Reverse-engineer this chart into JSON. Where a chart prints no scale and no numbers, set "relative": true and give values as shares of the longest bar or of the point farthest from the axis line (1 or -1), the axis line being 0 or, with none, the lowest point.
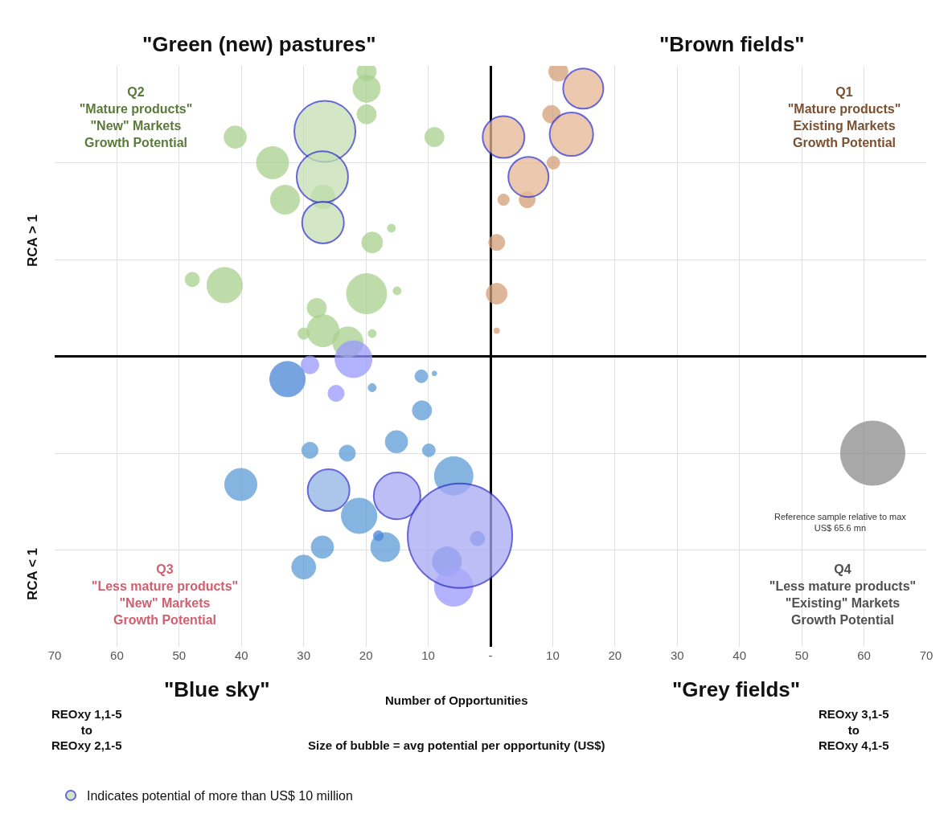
{
  "chart_data": {
    "type": "bubble",
    "relative": true,
    "xlabel": "Number of Opportunities",
    "xlim": [
      -70,
      70
    ],
    "xticks": [
      {
        "value": -70,
        "label": "70"
      },
      {
        "value": -60,
        "label": "60"
      },
      {
        "value": -50,
        "label": "50"
      },
      {
        "value": -40,
        "label": "40"
      },
      {
        "value": -30,
        "label": "30"
      },
      {
        "value": -20,
        "label": "20"
      },
      {
        "value": -10,
        "label": "10"
      },
      {
        "value": 0,
        "label": "-"
      },
      {
        "value": 10,
        "label": "10"
      },
      {
        "value": 20,
        "label": "20"
      },
      {
        "value": 30,
        "label": "30"
      },
      {
        "value": 40,
        "label": "40"
      },
      {
        "value": 50,
        "label": "50"
      },
      {
        "value": 60,
        "label": "60"
      },
      {
        "value": 70,
        "label": "70"
      }
    ],
    "grid": true,
    "legend": "bottom left",
    "series": [
      {
        "color": "#a9d18e",
        "x": [
          -19.9,
          -19.9,
          -19.9,
          -9.0,
          -41.0,
          -35.0,
          -33.0,
          -26.9,
          -19.0,
          -15.9,
          -47.9,
          -42.7,
          -19.9,
          -15.0,
          -27.9,
          -26.9,
          -30.0,
          -22.9,
          -19.0
        ],
        "values": [
          1.0,
          0.94,
          0.85,
          0.77,
          0.77,
          0.68,
          0.55,
          0.56,
          0.4,
          0.45,
          0.27,
          0.25,
          0.22,
          0.23,
          0.17,
          0.09,
          0.08,
          0.05,
          0.08
        ],
        "sizes": [
          0.034,
          0.068,
          0.034,
          0.034,
          0.046,
          0.095,
          0.077,
          0.053,
          0.04,
          0.006,
          0.019,
          0.115,
          0.148,
          0.006,
          0.034,
          0.095,
          0.012,
          0.085,
          0.006
        ]
      },
      {
        "color": "#d4a07a",
        "x": [
          10.9,
          9.8,
          10.1,
          5.9,
          2.1,
          1.0,
          1.0,
          1.0
        ],
        "values": [
          1.0,
          0.85,
          0.68,
          0.55,
          0.55,
          0.4,
          0.22,
          0.09
        ],
        "sizes": [
          0.034,
          0.029,
          0.015,
          0.024,
          0.012,
          0.024,
          0.04,
          0.003
        ]
      },
      {
        "colors": [
          "#9999ff",
          "#9999ff",
          "#4a86d8",
          "#9999ff",
          "#5b9bd5",
          "#5b9bd5",
          "#5b9bd5",
          "#5b9bd5",
          "#5b9bd5",
          "#5b9bd5",
          "#5b9bd5",
          "#5b9bd5",
          "#5b9bd5",
          "#5b9bd5",
          "#5b9bd5",
          "#5b9bd5",
          "#5b9bd5",
          "#5b9bd5",
          "#4a86d8",
          "#4a86d8",
          "#9999ff",
          "#4a86d8"
        ],
        "x": [
          -22.0,
          -29.0,
          -32.6,
          -24.8,
          -19.0,
          -11.1,
          -9.0,
          -11.0,
          -29.0,
          -23.0,
          -15.1,
          -9.9,
          -40.1,
          -5.9,
          -21.1,
          -27.0,
          -30.0,
          -16.9,
          -18.0,
          -7.0,
          -5.9,
          -2.1
        ],
        "values": [
          -0.01,
          -0.03,
          -0.08,
          -0.13,
          -0.11,
          -0.07,
          -0.06,
          -0.19,
          -0.33,
          -0.34,
          -0.3,
          -0.33,
          -0.45,
          -0.42,
          -0.56,
          -0.67,
          -0.74,
          -0.67,
          -0.63,
          -0.72,
          -0.81,
          -0.64
        ],
        "sizes": [
          0.125,
          0.029,
          0.115,
          0.024,
          0.006,
          0.015,
          0.002,
          0.034,
          0.024,
          0.024,
          0.046,
          0.015,
          0.095,
          0.136,
          0.115,
          0.046,
          0.053,
          0.077,
          0.009,
          0.077,
          0.136,
          0.019
        ]
      },
      {
        "name": "Indicates potential of more than US$ 10 million",
        "colors": [
          "#c5e0b4",
          "#c5e0b4",
          "#c5e0b4",
          "#e6b894",
          "#e6b894",
          "#e6b894",
          "#e6b894",
          "#8fb4e3",
          "#a9a9f5",
          "#a9a9f5"
        ],
        "x": [
          -26.6,
          -27.0,
          -26.9,
          14.9,
          13.0,
          2.1,
          6.1,
          -26.0,
          -15.0,
          -4.9
        ],
        "values": [
          0.79,
          0.63,
          0.47,
          0.94,
          0.78,
          0.77,
          0.63,
          -0.47,
          -0.49,
          -0.63
        ],
        "sizes": [
          0.342,
          0.242,
          0.16,
          0.148,
          0.173,
          0.16,
          0.148,
          0.16,
          0.2,
          1
        ]
      },
      {
        "color": "#8c8c8c",
        "x": [
          61.4
        ],
        "values": [
          -0.34
        ],
        "sizes": [
          0.38
        ]
      }
    ],
    "annotations": [
      "\"Green (new) pastures\"",
      "\"Brown fields\"",
      "\"Blue sky\"",
      "\"Grey fields\"",
      "Q2\n\"Mature products\"\n\"New\" Markets\nGrowth Potential",
      "Q1\n\"Mature products\"\nExisting Markets\nGrowth Potential",
      "Q3\n\"Less mature products\"\n\"New\" Markets\nGrowth Potential",
      "Q4\n\"Less mature products\"\n\"Existing\" Markets\nGrowth Potential",
      "RCA > 1",
      "RCA < 1",
      "REOxy 1,1-5\nto\nREOxy 2,1-5",
      "REOxy 3,1-5\nto\nREOxy 4,1-5",
      "Size of bubble = avg potential per opportunity (US$)",
      "Reference sample relative to max\nUS$ 65.6 mn"
    ]
  }
}
